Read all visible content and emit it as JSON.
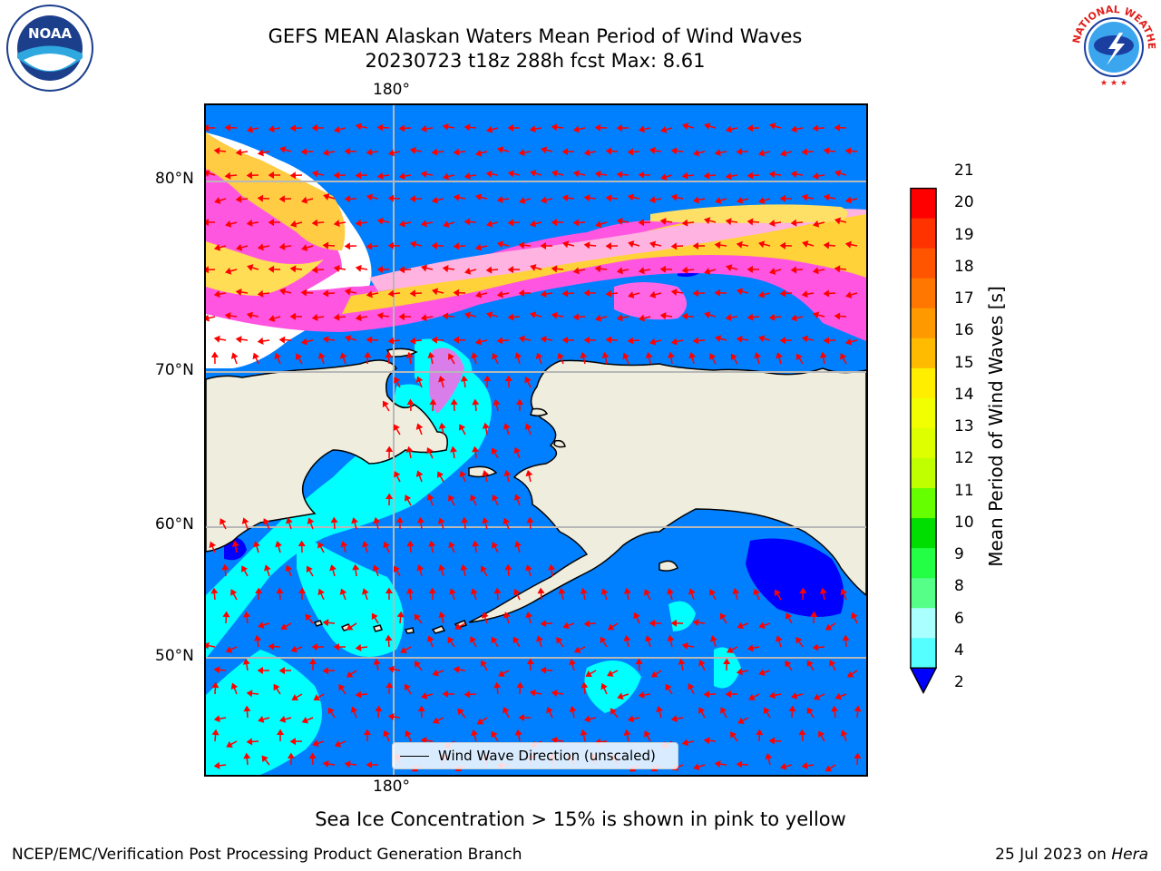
{
  "header": {
    "title_line1": "GEFS MEAN Alaskan Waters Mean Period of Wind Waves",
    "title_line2": "20230723 t18z 288h fcst   Max: 8.61"
  },
  "logos": {
    "left": {
      "name": "noaa-logo",
      "text": "NOAA"
    },
    "right": {
      "name": "nws-logo",
      "text": "NATIONAL WEATHER SERVICE"
    }
  },
  "map": {
    "lon_label_top": "180°",
    "lon_label_bottom": "180°",
    "lat_labels": [
      "80°N",
      "70°N",
      "60°N",
      "50°N"
    ],
    "legend_label": "Wind Wave Direction (unscaled)",
    "colors": {
      "ocean": "#0080ff",
      "land": "#efedde",
      "ice_white": "#ffffff",
      "arrows": "#ff0000"
    }
  },
  "colorbar": {
    "label": "Mean Period of Wind Waves [s]",
    "ticks": [
      "21",
      "20",
      "19",
      "18",
      "17",
      "16",
      "15",
      "14",
      "13",
      "12",
      "11",
      "10",
      "9",
      "8",
      "6",
      "4",
      "2"
    ],
    "colors": [
      "#ff0000",
      "#ff3300",
      "#ff5500",
      "#ff7700",
      "#ff9900",
      "#ffbb00",
      "#ffee00",
      "#f2ff00",
      "#ddff00",
      "#c0ff00",
      "#66ff00",
      "#00dd00",
      "#22ff44",
      "#55ff88",
      "#aaffff",
      "#55ffff",
      "#00ffff",
      "#0080ff"
    ],
    "under_color": "#0000ff"
  },
  "note": "Sea Ice Concentration > 15% is shown in pink to yellow",
  "footer": {
    "left": "NCEP/EMC/Verification Post Processing Product Generation Branch",
    "right_date": "25 Jul 2023 on ",
    "right_host": "Hera"
  }
}
